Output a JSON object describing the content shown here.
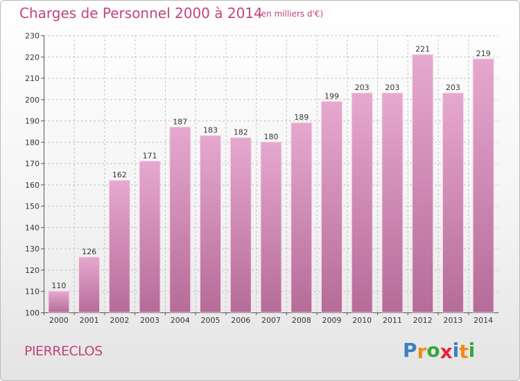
{
  "header": {
    "title": "Charges de Personnel 2000 à 2014",
    "subtitle": "(en milliers d'€)"
  },
  "footer": {
    "commune": "PIERRECLOS",
    "logo_letters": [
      "P",
      "r",
      "o",
      "x",
      "i",
      "t",
      "i"
    ],
    "logo_colors": [
      "#3c7fc4",
      "#ef8b16",
      "#39a63c",
      "#e5253d",
      "#3c7fc4",
      "#ef8b16",
      "#39a63c"
    ]
  },
  "colors": {
    "bar_top": "#e6a8cf",
    "bar_bottom": "#b56c98",
    "accent": "#c0447e"
  },
  "chart_data": {
    "type": "bar",
    "title": "Charges de Personnel 2000 à 2014",
    "subtitle": "(en milliers d'€)",
    "xlabel": "",
    "ylabel": "",
    "ylim": [
      100,
      230
    ],
    "yticks": [
      100,
      110,
      120,
      130,
      140,
      150,
      160,
      170,
      180,
      190,
      200,
      210,
      220,
      230
    ],
    "grid": true,
    "categories": [
      "2000",
      "2001",
      "2002",
      "2003",
      "2004",
      "2005",
      "2006",
      "2007",
      "2008",
      "2009",
      "2010",
      "2011",
      "2012",
      "2013",
      "2014"
    ],
    "values": [
      110,
      126,
      162,
      171,
      187,
      183,
      182,
      180,
      189,
      199,
      203,
      203,
      221,
      203,
      219
    ]
  }
}
